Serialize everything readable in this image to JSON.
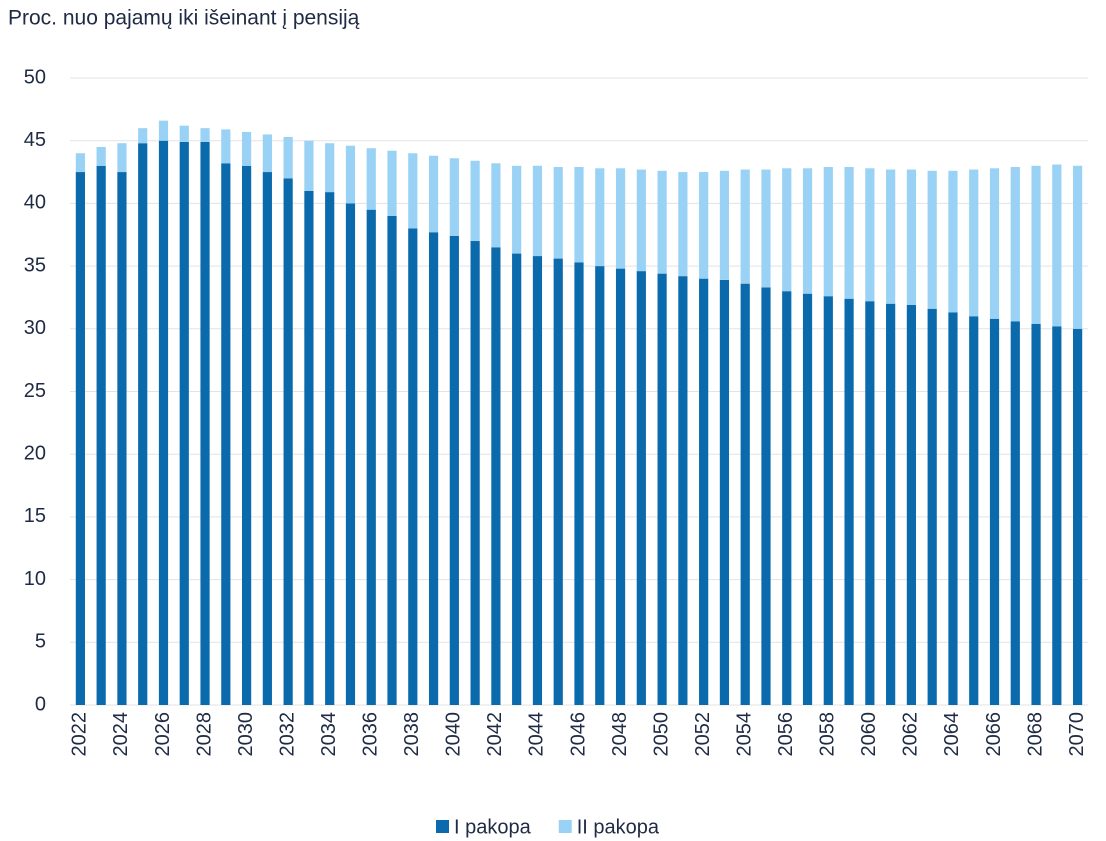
{
  "chart_data": {
    "type": "stacked_bar",
    "title": "Proc. nuo pajamų  iki išeinant į pensiją",
    "categories": [
      "2022",
      null,
      "2024",
      null,
      "2026",
      null,
      "2028",
      null,
      "2030",
      null,
      "2032",
      null,
      "2034",
      null,
      "2036",
      null,
      "2038",
      null,
      "2040",
      null,
      "2042",
      null,
      "2044",
      null,
      "2046",
      null,
      "2048",
      null,
      "2050",
      null,
      "2052",
      null,
      "2054",
      null,
      "2056",
      null,
      "2058",
      null,
      "2060",
      null,
      "2062",
      null,
      "2064",
      null,
      "2066",
      null,
      "2068",
      null,
      "2070"
    ],
    "series": [
      {
        "name": "I pakopa",
        "color": "#0b6aab",
        "values": [
          42.5,
          43,
          42.5,
          44.8,
          45,
          44.9,
          44.9,
          43.2,
          43,
          42.5,
          42,
          41,
          40.9,
          40,
          39.5,
          39,
          38,
          37.7,
          37.4,
          37,
          36.5,
          36,
          35.8,
          35.6,
          35.3,
          35,
          34.8,
          34.6,
          34.4,
          34.2,
          34,
          33.9,
          33.6,
          33.3,
          33,
          32.8,
          32.6,
          32.4,
          32.2,
          32,
          31.9,
          31.6,
          31.3,
          31,
          30.8,
          30.6,
          30.4,
          30.2,
          30
        ]
      },
      {
        "name": "II pakopa",
        "color": "#99d2f5",
        "values": [
          1.5,
          1.5,
          2.3,
          1.2,
          1.6,
          1.3,
          1.1,
          2.7,
          2.7,
          3,
          3.3,
          4,
          3.9,
          4.6,
          4.9,
          5.2,
          6,
          6.1,
          6.2,
          6.4,
          6.7,
          7,
          7.2,
          7.3,
          7.6,
          7.8,
          8,
          8.1,
          8.2,
          8.3,
          8.5,
          8.7,
          9.1,
          9.4,
          9.8,
          10,
          10.3,
          10.5,
          10.6,
          10.7,
          10.8,
          11,
          11.3,
          11.7,
          12,
          12.3,
          12.6,
          12.9,
          13
        ]
      }
    ],
    "ylim": [
      0,
      50
    ],
    "yticks": [
      0,
      5,
      10,
      15,
      20,
      25,
      30,
      35,
      40,
      45,
      50
    ],
    "grid": true,
    "legend": "bottom"
  }
}
